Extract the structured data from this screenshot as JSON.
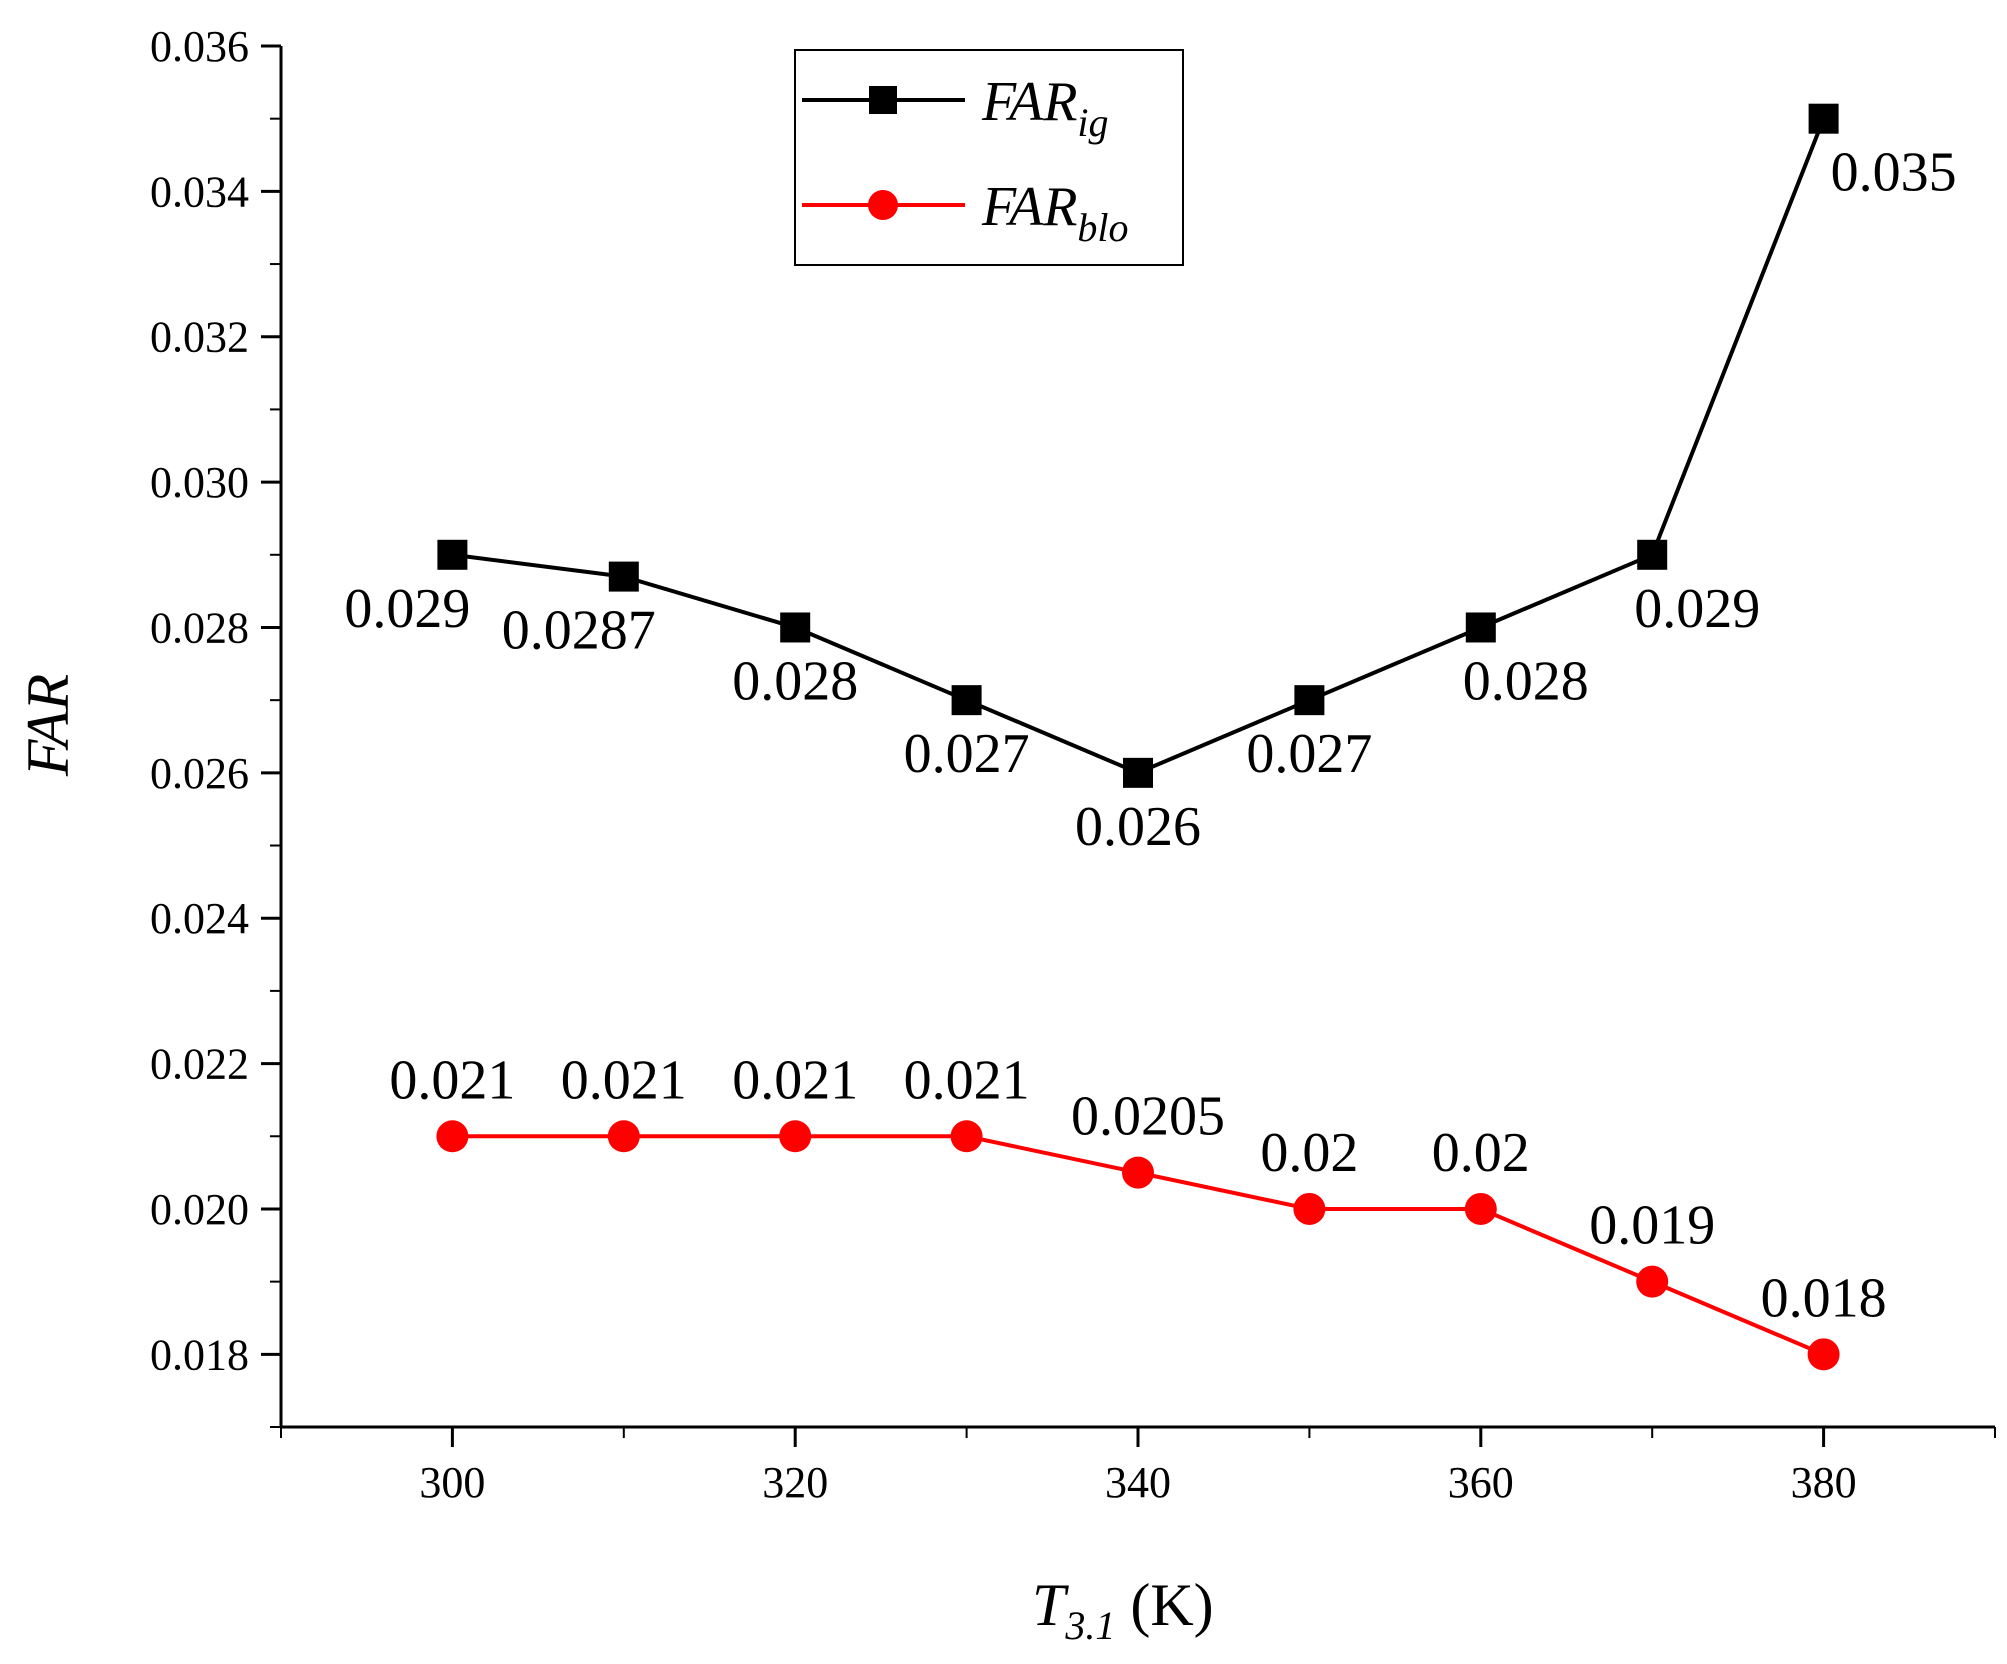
{
  "chart_data": {
    "type": "line",
    "x": [
      300,
      310,
      320,
      330,
      340,
      350,
      360,
      370,
      380
    ],
    "series": [
      {
        "name": "FAR_ig",
        "legend_main": "FAR",
        "legend_sub": "ig",
        "color": "#000000",
        "marker": "square",
        "values": [
          0.029,
          0.0287,
          0.028,
          0.027,
          0.026,
          0.027,
          0.028,
          0.029,
          0.035
        ],
        "labels": [
          "0.029",
          "0.0287",
          "0.028",
          "0.027",
          "0.026",
          "0.027",
          "0.028",
          "0.029",
          "0.035"
        ]
      },
      {
        "name": "FAR_blo",
        "legend_main": "FAR",
        "legend_sub": "blo",
        "color": "#ff0000",
        "marker": "circle",
        "values": [
          0.021,
          0.021,
          0.021,
          0.021,
          0.0205,
          0.02,
          0.02,
          0.019,
          0.018
        ],
        "labels": [
          "0.021",
          "0.021",
          "0.021",
          "0.021",
          "0.0205",
          "0.02",
          "0.02",
          "0.019",
          "0.018"
        ]
      }
    ],
    "xlim": [
      290,
      390
    ],
    "ylim": [
      0.017,
      0.036
    ],
    "xticks": [
      300,
      320,
      340,
      360,
      380
    ],
    "xtick_labels": [
      "300",
      "320",
      "340",
      "360",
      "380"
    ],
    "yticks": [
      0.018,
      0.02,
      0.022,
      0.024,
      0.026,
      0.028,
      0.03,
      0.032,
      0.034,
      0.036
    ],
    "ytick_labels": [
      "0.018",
      "0.020",
      "0.022",
      "0.024",
      "0.026",
      "0.028",
      "0.030",
      "0.032",
      "0.034",
      "0.036"
    ],
    "xlabel_main": "T",
    "xlabel_sub": "3.1",
    "xlabel_unit": " (K)",
    "ylabel": "FAR",
    "legend_position": "top-center",
    "grid": false
  }
}
